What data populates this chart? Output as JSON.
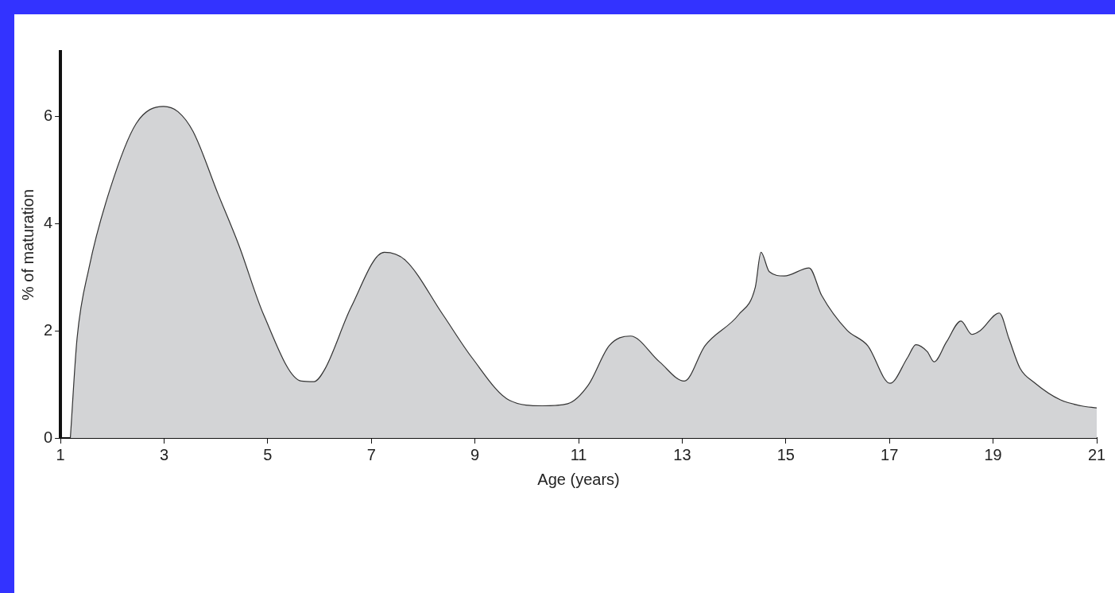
{
  "chart_data": {
    "type": "area",
    "xlabel": "Age (years)",
    "ylabel": "% of maturation",
    "xlim": [
      1,
      21
    ],
    "xticks": [
      1,
      3,
      5,
      7,
      9,
      11,
      13,
      15,
      17,
      19,
      21
    ],
    "ylim": [
      0,
      7.2
    ],
    "yticks": [
      0,
      2,
      4,
      6
    ],
    "grid": false,
    "legend": false,
    "series": [
      {
        "color": "#d3d4d6",
        "x": [
          1.19,
          1.32,
          1.55,
          1.95,
          2.46,
          2.99,
          3.27,
          3.56,
          4.04,
          4.44,
          4.92,
          5.65,
          5.89,
          6.1,
          6.61,
          7.25,
          7.66,
          8.38,
          8.94,
          9.67,
          10.3,
          10.79,
          11.19,
          11.59,
          12.0,
          12.56,
          13.04,
          13.44,
          14.09,
          14.41,
          14.52,
          14.68,
          14.97,
          15.45,
          15.69,
          16.18,
          16.58,
          17.01,
          17.35,
          17.51,
          17.73,
          17.86,
          18.1,
          18.38,
          18.59,
          18.75,
          19.12,
          19.31,
          19.52,
          19.8,
          20.3,
          20.7,
          21
        ],
        "values": [
          0,
          1.86,
          3.17,
          4.62,
          5.86,
          6.18,
          6.08,
          5.71,
          4.55,
          3.6,
          2.3,
          1.06,
          1.05,
          1.28,
          2.44,
          3.46,
          3.31,
          2.3,
          1.5,
          0.7,
          0.6,
          0.64,
          0.99,
          1.72,
          1.9,
          1.42,
          1.06,
          1.72,
          2.3,
          2.81,
          3.46,
          3.1,
          3.02,
          3.17,
          2.66,
          2.01,
          1.72,
          1.02,
          1.5,
          1.74,
          1.61,
          1.42,
          1.79,
          2.18,
          1.93,
          2.0,
          2.33,
          1.84,
          1.3,
          1.03,
          0.71,
          0.6,
          0.56
        ]
      }
    ]
  }
}
